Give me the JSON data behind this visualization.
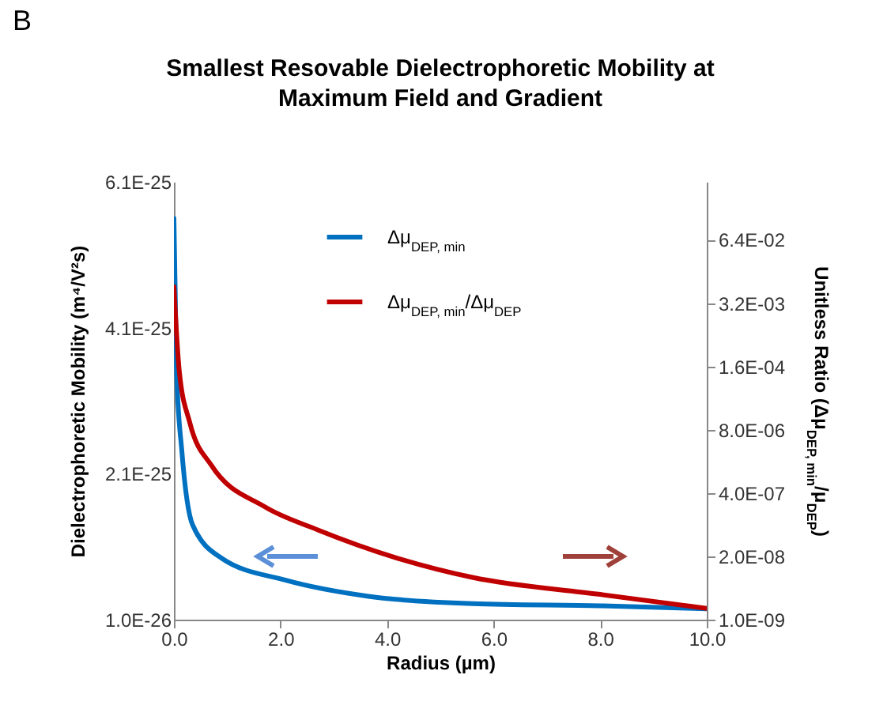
{
  "chart_data": {
    "type": "line",
    "title": "Smallest Resovable Dielectrophoretic Mobility  at\nMaximum Field and Gradient",
    "xlabel": "Radius (µm)",
    "ylabel": "Dielectrophoretic Mobility (m⁴/V²s)",
    "y2label": "Unitless Ratio (Δμ$_{DEP, min}$/μ$_{DEP}$)",
    "annotations": [
      "B"
    ],
    "xlim": [
      0,
      10
    ],
    "xticks": [
      {
        "value": 0,
        "label": "0.0"
      },
      {
        "value": 2,
        "label": "2.0"
      },
      {
        "value": 4,
        "label": "4.0"
      },
      {
        "value": 6,
        "label": "6.0"
      },
      {
        "value": 8,
        "label": "8.0"
      },
      {
        "value": 10,
        "label": "10.0"
      }
    ],
    "ylim": [
      1e-26,
      6.1e-25
    ],
    "yticks": [
      {
        "value": 1e-26,
        "label": "1.0E-26"
      },
      {
        "value": 2.1e-25,
        "label": "2.1E-25"
      },
      {
        "value": 4.1e-25,
        "label": "4.1E-25"
      },
      {
        "value": 6.1e-25,
        "label": "6.1E-25"
      }
    ],
    "y2lim": [
      1e-09,
      1
    ],
    "y2ticks": [
      {
        "value": 1e-09,
        "label": "1.0E-09"
      },
      {
        "value": 2e-08,
        "label": "2.0E-08"
      },
      {
        "value": 4e-07,
        "label": "4.0E-07"
      },
      {
        "value": 8e-06,
        "label": "8.0E-06"
      },
      {
        "value": 0.00016,
        "label": "1.6E-04"
      },
      {
        "value": 0.0032,
        "label": "3.2E-03"
      },
      {
        "value": 0.064,
        "label": "6.4E-02"
      }
    ],
    "log": "y2",
    "grid": false,
    "legend": "top",
    "marker": "none",
    "line_style": "solid",
    "series": [
      {
        "name": "Δμ$_{DEP, min}$",
        "color": "#0070c0",
        "x": [
          0,
          0.05,
          0.15,
          0.35,
          0.9,
          2.1,
          3.65,
          5.6,
          8,
          10
        ],
        "values": [
          5.6e-25,
          3.5e-25,
          2.4e-25,
          1.4e-25,
          9.4e-26,
          6.4e-26,
          4.2e-26,
          3.2e-26,
          2.9e-26,
          2.5e-26
        ]
      },
      {
        "name": "Δμ$_{DEP, min}$/Δμ$_{DEP}$",
        "color": "#c00000",
        "axis": "y2",
        "x": [
          0,
          0.1,
          0.3,
          0.7,
          1.7,
          2.7,
          4.15,
          5.6,
          8,
          10
        ],
        "values": [
          0.007,
          0.00013,
          1.1e-05,
          1.5e-06,
          2.1e-07,
          7e-08,
          1.9e-08,
          7.4e-09,
          3.3e-09,
          1.7e-09
        ]
      }
    ]
  }
}
